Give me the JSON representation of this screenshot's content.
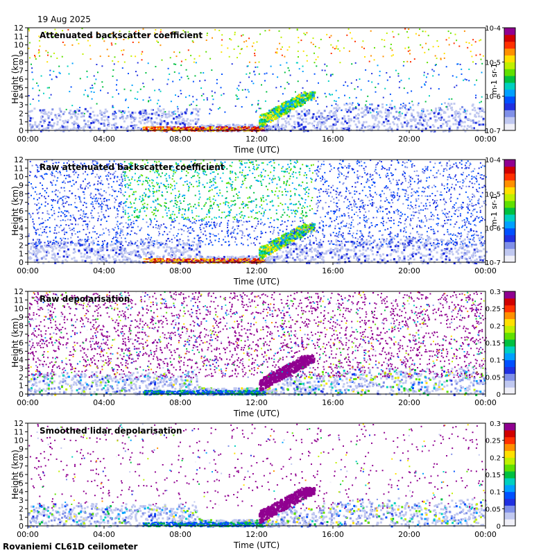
{
  "date": "19 Aug 2025",
  "footer": "Rovaniemi CL61D ceilometer",
  "colors": {
    "rainbow": [
      "#f0f0f8",
      "#c0c8f0",
      "#8090e8",
      "#2030e0",
      "#0050ff",
      "#00a0ff",
      "#00d0c0",
      "#00c040",
      "#60e000",
      "#c0f000",
      "#ffe000",
      "#ff9000",
      "#ff3000",
      "#d00000",
      "#900090"
    ]
  },
  "chart_data": [
    {
      "type": "heatmap",
      "title": "Attenuated backscatter coefficient",
      "xlabel": "Time (UTC)",
      "ylabel": "Height (km)",
      "x_ticks": [
        "00:00",
        "04:00",
        "08:00",
        "12:00",
        "16:00",
        "20:00",
        "00:00"
      ],
      "y_ticks": [
        "0",
        "1",
        "2",
        "3",
        "4",
        "5",
        "6",
        "7",
        "8",
        "9",
        "10",
        "11",
        "12"
      ],
      "ylim": [
        0,
        12
      ],
      "colorbar": {
        "scale": "log",
        "ticks": [
          "10-7",
          "10-6",
          "10-5",
          "10-4"
        ],
        "unit_label": "m-1 sr-1",
        "range": [
          1e-07,
          0.0001
        ]
      }
    },
    {
      "type": "heatmap",
      "title": "Raw attenuated backscatter coefficient",
      "xlabel": "Time (UTC)",
      "ylabel": "Height (km)",
      "x_ticks": [
        "00:00",
        "04:00",
        "08:00",
        "12:00",
        "16:00",
        "20:00",
        "00:00"
      ],
      "y_ticks": [
        "0",
        "1",
        "2",
        "3",
        "4",
        "5",
        "6",
        "7",
        "8",
        "9",
        "10",
        "11",
        "12"
      ],
      "ylim": [
        0,
        12
      ],
      "colorbar": {
        "scale": "log",
        "ticks": [
          "10-7",
          "10-6",
          "10-5",
          "10-4"
        ],
        "unit_label": "m-1 sr-1",
        "range": [
          1e-07,
          0.0001
        ]
      }
    },
    {
      "type": "heatmap",
      "title": "Raw depolarisation",
      "xlabel": "Time (UTC)",
      "ylabel": "Height (km)",
      "x_ticks": [
        "00:00",
        "04:00",
        "08:00",
        "12:00",
        "16:00",
        "20:00",
        "00:00"
      ],
      "y_ticks": [
        "0",
        "1",
        "2",
        "3",
        "4",
        "5",
        "6",
        "7",
        "8",
        "9",
        "10",
        "11",
        "12"
      ],
      "ylim": [
        0,
        12
      ],
      "colorbar": {
        "scale": "linear",
        "ticks": [
          "0",
          "0.05",
          "0.1",
          "0.15",
          "0.2",
          "0.25",
          "0.3"
        ],
        "range": [
          0,
          0.3
        ]
      }
    },
    {
      "type": "heatmap",
      "title": "Smoothed lidar depolarisation",
      "xlabel": "Time (UTC)",
      "ylabel": "Height (km)",
      "x_ticks": [
        "00:00",
        "04:00",
        "08:00",
        "12:00",
        "16:00",
        "20:00",
        "00:00"
      ],
      "y_ticks": [
        "0",
        "1",
        "2",
        "3",
        "4",
        "5",
        "6",
        "7",
        "8",
        "9",
        "10",
        "11",
        "12"
      ],
      "ylim": [
        0,
        12
      ],
      "colorbar": {
        "scale": "linear",
        "ticks": [
          "0",
          "0.05",
          "0.1",
          "0.15",
          "0.2",
          "0.25",
          "0.3"
        ],
        "range": [
          0,
          0.3
        ]
      }
    }
  ]
}
